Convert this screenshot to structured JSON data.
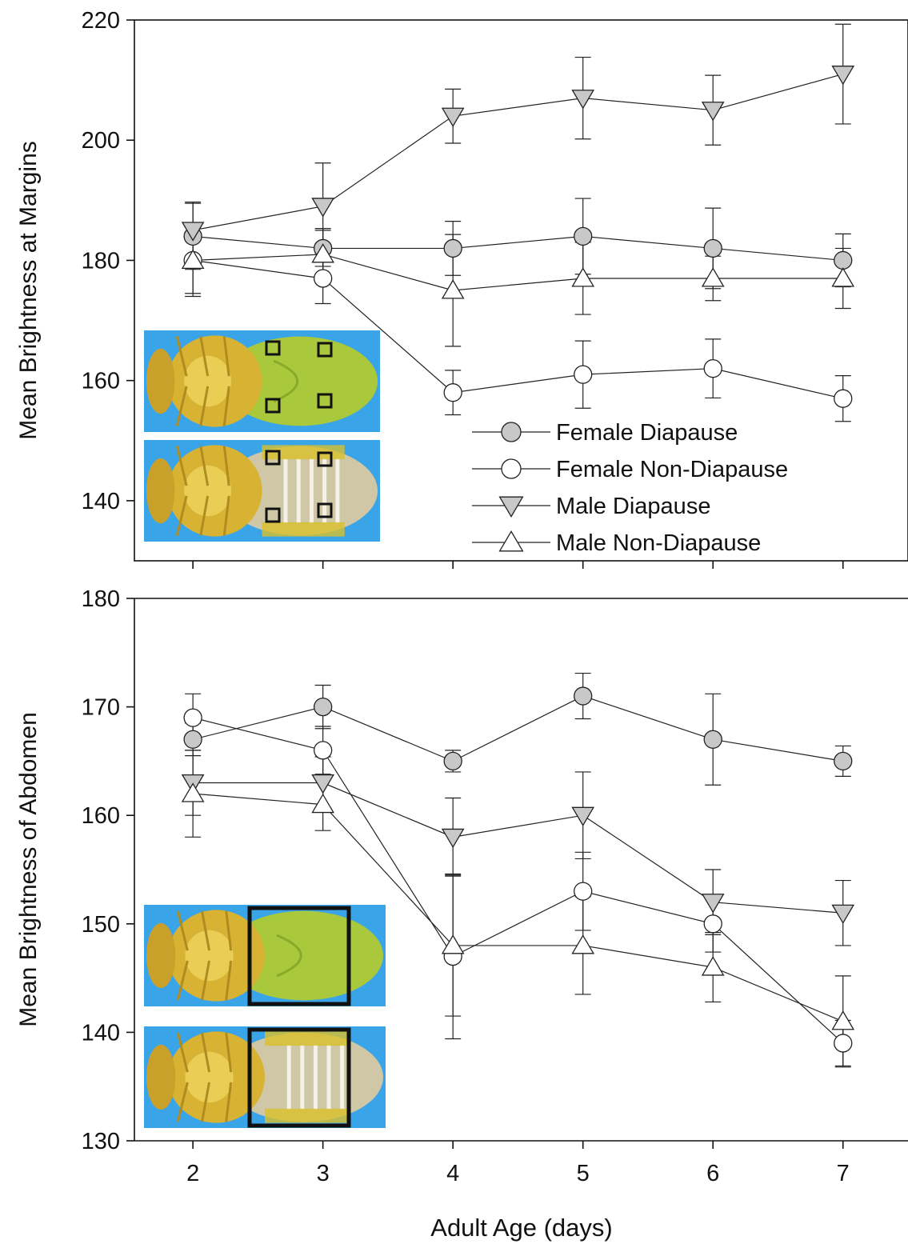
{
  "figure": {
    "xlabel": "Adult Age (days)"
  },
  "colors": {
    "filled_marker": "#c8c8c8",
    "open_marker": "#ffffff",
    "line": "#222222",
    "photo_background": "#3aa4e8",
    "fly_abdomen_green": "#a9c83c",
    "fly_body_yellow": "#d8b233",
    "roi_outline": "#111111"
  },
  "legend": {
    "placement": "lower-right of top panel",
    "entries": [
      {
        "label": "Female Diapause",
        "marker": "circle",
        "fill": "filled"
      },
      {
        "label": "Female Non-Diapause",
        "marker": "circle",
        "fill": "open"
      },
      {
        "label": "Male Diapause",
        "marker": "triangle-down",
        "fill": "filled"
      },
      {
        "label": "Male Non-Diapause",
        "marker": "triangle-up",
        "fill": "open"
      }
    ]
  },
  "insets": {
    "top_panel": {
      "views": [
        "female ventral abdomen",
        "male ventral abdomen"
      ],
      "roi": "four small squares at abdominal margins"
    },
    "bottom_panel": {
      "views": [
        "female ventral abdomen",
        "male ventral abdomen"
      ],
      "roi": "single large rectangle over abdomen"
    }
  },
  "chart_data": [
    {
      "type": "line",
      "ylabel": "Mean Brightness at Margins",
      "x": [
        2,
        3,
        4,
        5,
        6,
        7
      ],
      "xlim": [
        1.55,
        7.5
      ],
      "ylim": [
        130,
        220
      ],
      "yticks": [
        140,
        160,
        180,
        200,
        220
      ],
      "show_x_tick_labels": false,
      "grid": false,
      "series": [
        {
          "name": "Female Diapause",
          "marker": "circle",
          "fill": "filled",
          "values": [
            184,
            182,
            182,
            184,
            182,
            180
          ],
          "errors": [
            5.5,
            3,
            4.5,
            6.3,
            6.7,
            4.4
          ]
        },
        {
          "name": "Female Non-Diapause",
          "marker": "circle",
          "fill": "open",
          "values": [
            180,
            177,
            158,
            161,
            162,
            157
          ],
          "errors": [
            5.5,
            4.2,
            3.7,
            5.6,
            4.9,
            3.8
          ]
        },
        {
          "name": "Male Diapause",
          "marker": "triangle-down",
          "fill": "filled",
          "values": [
            185,
            189,
            204,
            207,
            205,
            211
          ],
          "errors": [
            4.7,
            7.2,
            4.5,
            6.8,
            5.8,
            8.3
          ]
        },
        {
          "name": "Male Non-Diapause",
          "marker": "triangle-up",
          "fill": "open",
          "values": [
            180,
            181,
            175,
            177,
            177,
            177
          ],
          "errors": [
            6,
            4.3,
            9.3,
            6,
            3.7,
            5
          ]
        }
      ]
    },
    {
      "type": "line",
      "ylabel": "Mean Brightness of Abdomen",
      "x": [
        2,
        3,
        4,
        5,
        6,
        7
      ],
      "xlim": [
        1.55,
        7.5
      ],
      "ylim": [
        130,
        180
      ],
      "yticks": [
        130,
        140,
        150,
        160,
        170,
        180
      ],
      "xticks": [
        2,
        3,
        4,
        5,
        6,
        7
      ],
      "show_x_tick_labels": true,
      "grid": false,
      "series": [
        {
          "name": "Female Diapause",
          "marker": "circle",
          "fill": "filled",
          "values": [
            167,
            170,
            165,
            171,
            167,
            165
          ],
          "errors": [
            1.5,
            2,
            1,
            2.1,
            4.2,
            1.4
          ]
        },
        {
          "name": "Female Non-Diapause",
          "marker": "circle",
          "fill": "open",
          "values": [
            169,
            166,
            147,
            153,
            150,
            139
          ],
          "errors": [
            2.2,
            2.2,
            7.6,
            3.6,
            2.6,
            2.1
          ]
        },
        {
          "name": "Male Diapause",
          "marker": "triangle-down",
          "fill": "filled",
          "values": [
            163,
            163,
            158,
            160,
            152,
            151
          ],
          "errors": [
            3,
            2.4,
            3.6,
            4,
            3,
            3
          ]
        },
        {
          "name": "Male Non-Diapause",
          "marker": "triangle-up",
          "fill": "open",
          "values": [
            162,
            161,
            148,
            148,
            146,
            141
          ],
          "errors": [
            4,
            2.4,
            6.5,
            4.5,
            3.2,
            4.2
          ]
        }
      ]
    }
  ]
}
